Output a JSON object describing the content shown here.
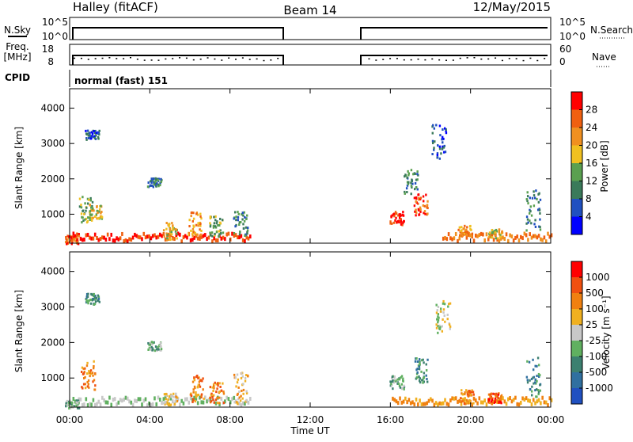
{
  "header": {
    "station": "Halley (fitACF)",
    "beam": "Beam 14",
    "date": "12/May/2015"
  },
  "strips": {
    "nsky_label": "N.Sky",
    "nsearch_label": "N.Search",
    "nsky_ticks": [
      "10^5",
      "10^0"
    ],
    "nsearch_ticks": [
      "10^5",
      "10^0"
    ],
    "freq_label": "Freq.",
    "freq_unit": "[MHz]",
    "freq_ticks": [
      "18",
      "8"
    ],
    "nave_label": "Nave",
    "nave_ticks": [
      "60",
      "0"
    ],
    "cpid_label": "CPID",
    "cpid_text": "normal (fast) 151"
  },
  "colors": {
    "power_scale": [
      "#0000ff",
      "#2050c0",
      "#3a7a5a",
      "#5aa050",
      "#f0c020",
      "#f09020",
      "#f06010",
      "#ff0000"
    ],
    "velocity_scale": [
      "#2050c0",
      "#3070a0",
      "#3c8070",
      "#60b060",
      "#c8c8c8",
      "#f0b020",
      "#f08010",
      "#f05010",
      "#ff0000"
    ]
  },
  "chart_data": [
    {
      "type": "heatmap",
      "name": "power",
      "ylabel": "Slant Range [km]",
      "xlabel": "",
      "y_ticks": [
        1000,
        2000,
        3000,
        4000
      ],
      "ylim": [
        180,
        4550
      ],
      "xlim_hours": [
        0,
        24
      ],
      "colorbar_label": "Power [dB]",
      "colorbar_ticks": [
        "4",
        "8",
        "12",
        "16",
        "20",
        "24",
        "28"
      ],
      "data_gap_hours": [
        10.5,
        14.6
      ],
      "clusters": [
        {
          "t": 0.1,
          "r0": 180,
          "r1": 420,
          "level": 6
        },
        {
          "t": 0.8,
          "r0": 800,
          "r1": 1550,
          "level": 3
        },
        {
          "t": 1.1,
          "r0": 3100,
          "r1": 3400,
          "level": 1
        },
        {
          "t": 1.3,
          "r0": 900,
          "r1": 1300,
          "level": 4
        },
        {
          "t": 4.2,
          "r0": 1800,
          "r1": 2050,
          "level": 2
        },
        {
          "t": 5.0,
          "r0": 300,
          "r1": 800,
          "level": 4
        },
        {
          "t": 6.2,
          "r0": 400,
          "r1": 1100,
          "level": 5
        },
        {
          "t": 7.3,
          "r0": 400,
          "r1": 1000,
          "level": 3
        },
        {
          "t": 8.5,
          "r0": 400,
          "r1": 1100,
          "level": 2
        },
        {
          "t": 16.3,
          "r0": 700,
          "r1": 1100,
          "level": 7
        },
        {
          "t": 17.5,
          "r0": 1000,
          "r1": 1600,
          "level": 6
        },
        {
          "t": 18.4,
          "r0": 2600,
          "r1": 3600,
          "level": 1
        },
        {
          "t": 17.0,
          "r0": 1600,
          "r1": 2300,
          "level": 2
        },
        {
          "t": 19.7,
          "r0": 400,
          "r1": 700,
          "level": 5
        },
        {
          "t": 21.2,
          "r0": 350,
          "r1": 600,
          "level": 4
        },
        {
          "t": 23.1,
          "r0": 500,
          "r1": 1700,
          "level": 2
        }
      ]
    },
    {
      "type": "heatmap",
      "name": "velocity",
      "ylabel": "Slant Range [km]",
      "xlabel": "Time UT",
      "x_ticks": [
        "00:00",
        "04:00",
        "08:00",
        "12:00",
        "16:00",
        "20:00",
        "00:00"
      ],
      "y_ticks": [
        1000,
        2000,
        3000,
        4000
      ],
      "ylim": [
        180,
        4550
      ],
      "xlim_hours": [
        0,
        24
      ],
      "colorbar_label": "Velocity [m s⁻¹]",
      "colorbar_ticks": [
        "-1000",
        "-500",
        "-100",
        "-25",
        "25",
        "100",
        "500",
        "1000"
      ],
      "data_gap_hours": [
        10.5,
        14.6
      ],
      "clusters": [
        {
          "t": 0.1,
          "r0": 180,
          "r1": 400,
          "level": 3
        },
        {
          "t": 0.9,
          "r0": 700,
          "r1": 1500,
          "level": 6
        },
        {
          "t": 1.1,
          "r0": 3100,
          "r1": 3400,
          "level": 2
        },
        {
          "t": 4.2,
          "r0": 1800,
          "r1": 2050,
          "level": 3
        },
        {
          "t": 5.0,
          "r0": 250,
          "r1": 600,
          "level": 5
        },
        {
          "t": 6.3,
          "r0": 300,
          "r1": 1100,
          "level": 6
        },
        {
          "t": 7.3,
          "r0": 300,
          "r1": 900,
          "level": 6
        },
        {
          "t": 8.5,
          "r0": 300,
          "r1": 1200,
          "level": 5
        },
        {
          "t": 16.3,
          "r0": 700,
          "r1": 1100,
          "level": 3
        },
        {
          "t": 17.5,
          "r0": 900,
          "r1": 1600,
          "level": 2
        },
        {
          "t": 18.6,
          "r0": 2300,
          "r1": 3200,
          "level": 4
        },
        {
          "t": 19.8,
          "r0": 300,
          "r1": 700,
          "level": 6
        },
        {
          "t": 21.2,
          "r0": 300,
          "r1": 600,
          "level": 7
        },
        {
          "t": 23.1,
          "r0": 500,
          "r1": 1600,
          "level": 2
        }
      ]
    }
  ]
}
